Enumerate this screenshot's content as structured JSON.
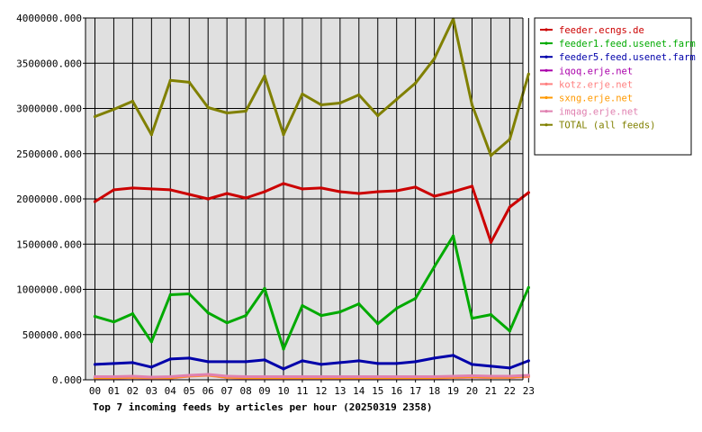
{
  "chart_data": {
    "type": "line",
    "title": "Top 7 incoming feeds by articles per hour (20250319 2358)",
    "xlabel": "",
    "ylabel": "",
    "categories": [
      "00",
      "01",
      "02",
      "03",
      "04",
      "05",
      "06",
      "07",
      "08",
      "09",
      "10",
      "11",
      "12",
      "13",
      "14",
      "15",
      "16",
      "17",
      "18",
      "19",
      "20",
      "21",
      "22",
      "23"
    ],
    "ylim": [
      0,
      4000000
    ],
    "y_ticks": [
      "0.000",
      "500000.000",
      "1000000.000",
      "1500000.000",
      "2000000.000",
      "2500000.000",
      "3000000.000",
      "3500000.000",
      "4000000.000"
    ],
    "grid": "on",
    "legend_position": "right",
    "series": [
      {
        "name": "feeder.ecngs.de",
        "color": "#cc0000",
        "values": [
          1970000,
          2100000,
          2120000,
          2110000,
          2100000,
          2050000,
          2000000,
          2060000,
          2010000,
          2080000,
          2170000,
          2110000,
          2120000,
          2080000,
          2060000,
          2080000,
          2090000,
          2130000,
          2030000,
          2080000,
          2140000,
          1520000,
          1910000,
          2070000
        ]
      },
      {
        "name": "feeder1.feed.usenet.farm",
        "color": "#00aa00",
        "values": [
          700000,
          640000,
          730000,
          420000,
          940000,
          950000,
          740000,
          630000,
          710000,
          1010000,
          340000,
          820000,
          710000,
          750000,
          840000,
          620000,
          790000,
          900000,
          1250000,
          1590000,
          680000,
          720000,
          540000,
          1020000
        ]
      },
      {
        "name": "feeder5.feed.usenet.farm",
        "color": "#0000aa",
        "values": [
          170000,
          180000,
          190000,
          140000,
          230000,
          240000,
          200000,
          200000,
          200000,
          220000,
          120000,
          210000,
          170000,
          190000,
          210000,
          180000,
          180000,
          200000,
          240000,
          270000,
          170000,
          150000,
          130000,
          210000
        ]
      },
      {
        "name": "iqoq.erje.net",
        "color": "#aa00aa",
        "values": [
          20000,
          20000,
          25000,
          20000,
          20000,
          45000,
          55000,
          25000,
          20000,
          20000,
          20000,
          20000,
          20000,
          20000,
          20000,
          20000,
          20000,
          20000,
          20000,
          25000,
          30000,
          25000,
          25000,
          40000
        ]
      },
      {
        "name": "kotz.erje.net",
        "color": "#ff8080",
        "values": [
          20000,
          20000,
          25000,
          20000,
          20000,
          40000,
          50000,
          25000,
          20000,
          20000,
          20000,
          20000,
          20000,
          20000,
          20000,
          20000,
          20000,
          20000,
          20000,
          25000,
          30000,
          25000,
          25000,
          35000
        ]
      },
      {
        "name": "sxng.erje.net",
        "color": "#ff9900",
        "values": [
          25000,
          25000,
          30000,
          25000,
          25000,
          45000,
          55000,
          30000,
          25000,
          25000,
          25000,
          25000,
          25000,
          25000,
          25000,
          25000,
          25000,
          25000,
          25000,
          30000,
          35000,
          30000,
          30000,
          45000
        ]
      },
      {
        "name": "imqag.erje.net",
        "color": "#e080b0",
        "values": [
          35000,
          35000,
          40000,
          30000,
          35000,
          50000,
          60000,
          40000,
          35000,
          35000,
          35000,
          35000,
          35000,
          35000,
          35000,
          35000,
          35000,
          35000,
          35000,
          40000,
          45000,
          40000,
          40000,
          50000
        ]
      },
      {
        "name": "TOTAL (all feeds)",
        "color": "#808000",
        "values": [
          2910000,
          2990000,
          3080000,
          2710000,
          3310000,
          3290000,
          3010000,
          2950000,
          2970000,
          3360000,
          2710000,
          3160000,
          3040000,
          3060000,
          3150000,
          2920000,
          3100000,
          3280000,
          3550000,
          3990000,
          3040000,
          2480000,
          2660000,
          3380000
        ]
      }
    ]
  }
}
